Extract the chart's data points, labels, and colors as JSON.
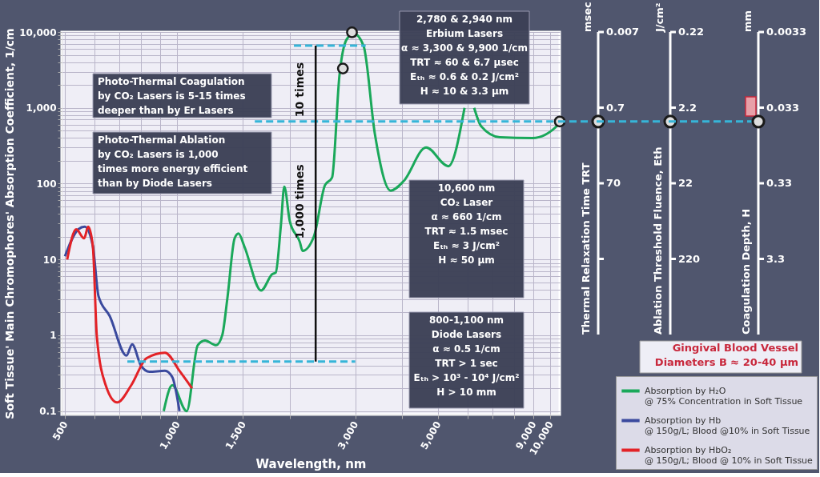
{
  "chart_data": [
    {
      "type": "line",
      "xlabel": "Wavelength, nm",
      "ylabel": "Soft Tissue' Main Chromophores' Absorption Coefficient, 1/cm",
      "log": "xy",
      "grid": true,
      "legend": "bottom right",
      "xlim": [
        490,
        10600
      ],
      "ylim": [
        0.09,
        10000
      ],
      "xticks": [
        500,
        {
          "value": 600,
          "label": null
        },
        {
          "value": 700,
          "label": null
        },
        {
          "value": 800,
          "label": null
        },
        {
          "value": 900,
          "label": null
        },
        {
          "value": 1000,
          "label": "1,000"
        },
        {
          "value": 1500,
          "label": "1,500"
        },
        {
          "value": 2000,
          "label": null
        },
        {
          "value": 3000,
          "label": "3,000"
        },
        {
          "value": 4000,
          "label": null
        },
        {
          "value": 5000,
          "label": "5,000"
        },
        {
          "value": 6000,
          "label": null
        },
        {
          "value": 7000,
          "label": null
        },
        {
          "value": 8000,
          "label": null
        },
        {
          "value": 9000,
          "label": "9,000"
        },
        {
          "value": 10000,
          "label": "10,000"
        }
      ],
      "yticks": [
        0.1,
        {
          "value": 0.2,
          "label": null
        },
        {
          "value": 0.3,
          "label": null
        },
        {
          "value": 0.4,
          "label": null
        },
        {
          "value": 0.5,
          "label": null
        },
        {
          "value": 0.6,
          "label": null
        },
        {
          "value": 0.7,
          "label": null
        },
        {
          "value": 0.8,
          "label": null
        },
        {
          "value": 0.9,
          "label": null
        },
        1,
        {
          "value": 2,
          "label": null
        },
        {
          "value": 3,
          "label": null
        },
        {
          "value": 4,
          "label": null
        },
        {
          "value": 5,
          "label": null
        },
        {
          "value": 6,
          "label": null
        },
        {
          "value": 7,
          "label": null
        },
        {
          "value": 8,
          "label": null
        },
        {
          "value": 9,
          "label": null
        },
        10,
        {
          "value": 20,
          "label": null
        },
        {
          "value": 30,
          "label": null
        },
        {
          "value": 40,
          "label": null
        },
        {
          "value": 50,
          "label": null
        },
        {
          "value": 60,
          "label": null
        },
        {
          "value": 70,
          "label": null
        },
        {
          "value": 80,
          "label": null
        },
        {
          "value": 90,
          "label": null
        },
        100,
        {
          "value": 200,
          "label": null
        },
        {
          "value": 300,
          "label": null
        },
        {
          "value": 400,
          "label": null
        },
        {
          "value": 500,
          "label": null
        },
        {
          "value": 600,
          "label": null
        },
        {
          "value": 700,
          "label": null
        },
        {
          "value": 800,
          "label": null
        },
        {
          "value": 900,
          "label": null
        },
        {
          "value": 1000,
          "label": "1,000"
        },
        {
          "value": 2000,
          "label": null
        },
        {
          "value": 3000,
          "label": null
        },
        {
          "value": 4000,
          "label": null
        },
        {
          "value": 5000,
          "label": null
        },
        {
          "value": 6000,
          "label": null
        },
        {
          "value": 7000,
          "label": null
        },
        {
          "value": 8000,
          "label": null
        },
        {
          "value": 9000,
          "label": null
        },
        {
          "value": 10000,
          "label": "10,000"
        }
      ],
      "series": [
        {
          "name": "Absorption by H₂O\n@ 75% Concentration in Soft Tissue",
          "type": "line",
          "color": "#1aa85a",
          "x": [
            920,
            970,
            1060,
            1135,
            1187,
            1272,
            1320,
            1363,
            1425,
            1460,
            1512,
            1678,
            1798,
            1836,
            1897,
            1936,
            2003,
            2131,
            2168,
            2323,
            2490,
            2600,
            2722,
            2846,
            2976,
            3160,
            3385,
            3735,
            4045,
            4645,
            5330,
            5890,
            6070,
            6250,
            6530,
            7320,
            8960,
            10500,
            10600
          ],
          "values": [
            0.1,
            0.22,
            0.1,
            0.74,
            0.85,
            0.74,
            1.0,
            3.1,
            19,
            22,
            15,
            3.9,
            6.4,
            6.7,
            29,
            91,
            32,
            17,
            13,
            20,
            96,
            120,
            2700,
            8000,
            9500,
            6500,
            460,
            81,
            108,
            300,
            170,
            1000,
            null,
            1000,
            570,
            410,
            400,
            600,
            660
          ]
        },
        {
          "name": "Absorption by Hb\n@ 150g/L; Blood @10% in Soft Tissue",
          "type": "line",
          "color": "#3b4a9e",
          "x": [
            500,
            543,
            565,
            594,
            615,
            659,
            731,
            757,
            799,
            842,
            927,
            970,
            1014
          ],
          "values": [
            11,
            25,
            27,
            15,
            3.3,
            1.8,
            0.54,
            0.76,
            0.4,
            0.33,
            0.34,
            0.28,
            0.1
          ]
        },
        {
          "name": "Absorption by HbO₂\n@ 150g/L; Blood @ 10% in Soft Tissue",
          "type": "line",
          "color": "#e32227",
          "x": [
            507,
            536,
            563,
            577,
            594,
            609,
            643,
            690,
            753,
            828,
            927,
            1014,
            1096
          ],
          "values": [
            10,
            25,
            19,
            27,
            15,
            0.94,
            0.22,
            0.13,
            0.22,
            0.5,
            0.59,
            0.34,
            0.2
          ]
        },
        {
          "type": "line",
          "line_style": "dashed",
          "color": "#36b5d8",
          "x": [
            2055,
            3200
          ],
          "values": [
            6600,
            6600
          ]
        },
        {
          "type": "line",
          "line_style": "dashed",
          "color": "#36b5d8",
          "x": [
            1614,
            10600
          ],
          "values": [
            660,
            660
          ]
        },
        {
          "type": "line",
          "line_style": "dashed",
          "color": "#36b5d8",
          "x": [
            735,
            3000
          ],
          "values": [
            0.45,
            0.45
          ]
        },
        {
          "type": "scatter",
          "marker": "circle",
          "color": "#1a1a1a",
          "x": [
            2780,
            2940,
            10600
          ],
          "values": [
            3300,
            9900,
            660
          ]
        },
        {
          "type": "line",
          "color": "#111111",
          "x": [
            2350,
            2350
          ],
          "values": [
            6600,
            0.45
          ]
        }
      ],
      "annotations": [
        "2,780 & 2,940 nm\nErbium Lasers\nα ≈ 3,300 & 9,900 1/cm\nTRT ≈ 60 & 6.7 µsec\nEₜₕ ≈ 0.6 & 0.2 J/cm²\nH ≈ 10 & 3.3 µm",
        "Photo-Thermal Coagulation\nby CO₂ Lasers is 5-15 times\ndeeper than by Er Lasers",
        "Photo-Thermal Ablation\nby CO₂ Lasers is 1,000\ntimes more energy efficient\nthan by Diode Lasers",
        "10,600 nm\nCO₂ Laser\nα ≈ 660 1/cm\nTRT ≈ 1.5 msec\nEₜₕ ≈ 3 J/cm²\nH ≈ 50 µm",
        "800-1,100 nm\nDiode Lasers\nα ≈ 0.5 1/cm\nTRT > 1 sec\nEₜₕ > 10³ - 10⁴ J/cm²\nH > 10 mm",
        "10 times",
        "1,000 times",
        "msec",
        "J/cm²",
        "Thermal Relaxation Time TRT",
        "0.007",
        "0.7",
        "70",
        "Ablation Threshold Fluence, Eth",
        "0.22",
        "2.2",
        "22",
        "220",
        "mm",
        "Coagulation Depth, H",
        "0.0033",
        "0.033",
        "0.33",
        "3.3",
        "Gingival Blood Vessel\nDiameters B ≈ 20-40 µm"
      ]
    }
  ]
}
